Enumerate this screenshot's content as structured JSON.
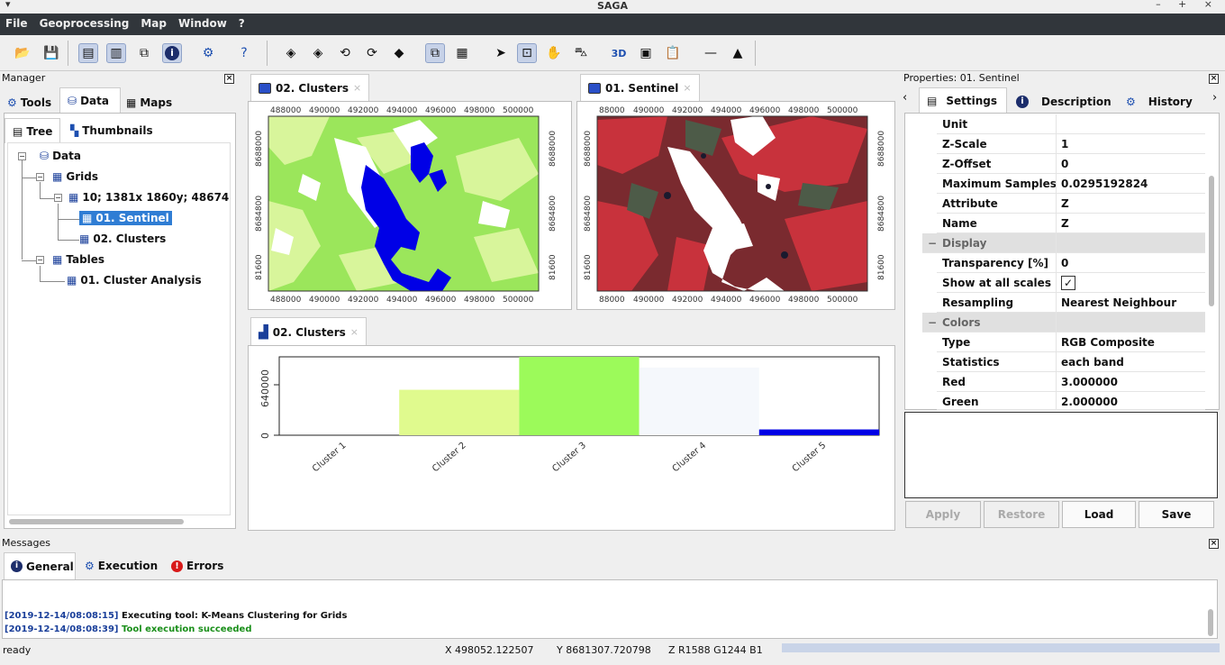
{
  "window": {
    "title": "SAGA"
  },
  "menu": [
    "File",
    "Geoprocessing",
    "Map",
    "Window",
    "?"
  ],
  "manager": {
    "title": "Manager",
    "tabs": [
      "Tools",
      "Data",
      "Maps"
    ],
    "subtabs": [
      "Tree",
      "Thumbnails"
    ],
    "tree": {
      "root": "Data",
      "grids": "Grids",
      "grid_system": "10; 1381x 1860y; 486745x 8",
      "sentinel": "01. Sentinel",
      "clusters": "02. Clusters",
      "tables": "Tables",
      "cluster_analysis": "01. Cluster Analysis"
    }
  },
  "map_clusters": {
    "tab": "02. Clusters",
    "xticks": [
      "488000",
      "490000",
      "492000",
      "494000",
      "496000",
      "498000",
      "500000"
    ],
    "yticks": [
      "8688000",
      "8684800",
      "81600"
    ]
  },
  "map_sentinel": {
    "tab": "01. Sentinel",
    "xticks": [
      "88000",
      "490000",
      "492000",
      "494000",
      "496000",
      "498000",
      "500000"
    ],
    "yticks": [
      "8688000",
      "8684800",
      "81600"
    ]
  },
  "histogram": {
    "tab": "02. Clusters"
  },
  "chart_data": {
    "type": "bar",
    "categories": [
      "Cluster 1",
      "Cluster 2",
      "Cluster 3",
      "Cluster 4",
      "Cluster 5"
    ],
    "values": [
      0,
      510000,
      880000,
      760000,
      65000
    ],
    "colors": [
      "#ffffff",
      "#e0fa8e",
      "#9cfa5a",
      "#f5f8fc",
      "#0000e6"
    ],
    "yticks": [
      "0",
      "640000"
    ],
    "ylim": [
      0,
      880000
    ],
    "xlabel": "",
    "ylabel": ""
  },
  "properties": {
    "title": "Properties: 01. Sentinel",
    "tabs": [
      "Settings",
      "Description",
      "History"
    ],
    "rows": [
      {
        "k": "Unit",
        "v": ""
      },
      {
        "k": "Z-Scale",
        "v": "1"
      },
      {
        "k": "Z-Offset",
        "v": "0"
      },
      {
        "k": "Maximum Samples",
        "v": "0.0295192824"
      },
      {
        "k": "Attribute",
        "v": "Z"
      },
      {
        "k": "Name",
        "v": "Z"
      }
    ],
    "display_section": "Display",
    "display_rows": [
      {
        "k": "Transparency [%]",
        "v": "0"
      },
      {
        "k": "Show at all scales",
        "v": ""
      },
      {
        "k": "Resampling",
        "v": "Nearest Neighbour"
      }
    ],
    "colors_section": "Colors",
    "colors_rows": [
      {
        "k": "Type",
        "v": "RGB Composite"
      },
      {
        "k": "Statistics",
        "v": "each band"
      },
      {
        "k": "Red",
        "v": "3.000000"
      },
      {
        "k": "Green",
        "v": "2.000000"
      }
    ],
    "buttons": [
      "Apply",
      "Restore",
      "Load",
      "Save"
    ]
  },
  "messages": {
    "title": "Messages",
    "tabs": [
      "General",
      "Execution",
      "Errors"
    ],
    "lines": [
      {
        "time": "[2019-12-14/08:08:15]",
        "text": "Executing tool: K-Means Clustering for Grids"
      },
      {
        "time": "[2019-12-14/08:08:39]",
        "text": "Tool execution succeeded"
      }
    ]
  },
  "statusbar": {
    "state": "ready",
    "x": "X 498052.122507",
    "y": "Y 8681307.720798",
    "z": "Z R1588 G1244 B1"
  }
}
